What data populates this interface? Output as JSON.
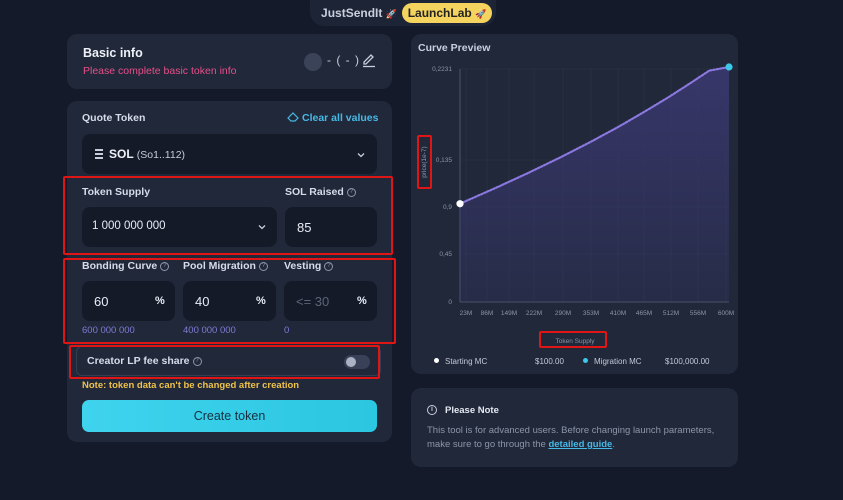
{
  "tabs": {
    "justsendit": "JustSendIt",
    "justsendit_icon": "rocket-icon",
    "launchlab": "LaunchLab",
    "launchlab_icon": "rocket-icon"
  },
  "basic_info": {
    "title": "Basic info",
    "subtitle": "Please complete basic token info",
    "ticker": "- ( - )",
    "edit_icon": "pencil-icon"
  },
  "form": {
    "quote_label": "Quote Token",
    "clear_label": "Clear all values",
    "quote_symbol": "SOL",
    "quote_address": "(So1..112)",
    "supply_label": "Token Supply",
    "supply_value": "1 000 000 000",
    "sol_raised_label": "SOL Raised",
    "sol_raised_value": "85",
    "bonding_label": "Bonding Curve",
    "bonding_value": "60",
    "bonding_sub": "600 000 000",
    "pool_label": "Pool Migration",
    "pool_value": "40",
    "pool_sub": "400 000 000",
    "vesting_label": "Vesting",
    "vesting_placeholder": "<= 30",
    "vesting_sub": "0",
    "percent": "%",
    "lp_label": "Creator LP fee share",
    "lp_enabled": false,
    "warning": "Note: token data can't be changed after creation",
    "create_button": "Create token"
  },
  "curve": {
    "title": "Curve Preview",
    "starting_label": "Starting MC",
    "starting_value": "$100.00",
    "migration_label": "Migration MC",
    "migration_value": "$100,000.00",
    "colors": {
      "line": "#8b78e0",
      "start_dot": "#ffffff",
      "end_dot": "#3cc8e8",
      "fill": "#3a3870"
    }
  },
  "chart_data": {
    "type": "line",
    "xlabel": "Token Supply",
    "ylabel": "price(1e-7)",
    "y_ticks": [
      "0",
      "0,45",
      "0,9",
      "0,135",
      "0,2231"
    ],
    "x_ticks": [
      "23M",
      "86M",
      "149M",
      "222M",
      "290M",
      "353M",
      "410M",
      "465M",
      "512M",
      "556M",
      "600M"
    ],
    "x": [
      0,
      23,
      86,
      149,
      222,
      290,
      353,
      410,
      465,
      512,
      556,
      600
    ],
    "y": [
      0.0941,
      0.0985,
      0.1105,
      0.1229,
      0.1381,
      0.153,
      0.1677,
      0.1818,
      0.1961,
      0.209,
      0.2216,
      0.235
    ],
    "ylim": [
      0,
      0.2231
    ],
    "xlim": [
      0,
      600
    ],
    "grid": true
  },
  "note": {
    "title": "Please Note",
    "body": "This tool is for advanced users. Before changing launch parameters, make sure to go through the",
    "link": "detailed guide",
    "end": "."
  }
}
